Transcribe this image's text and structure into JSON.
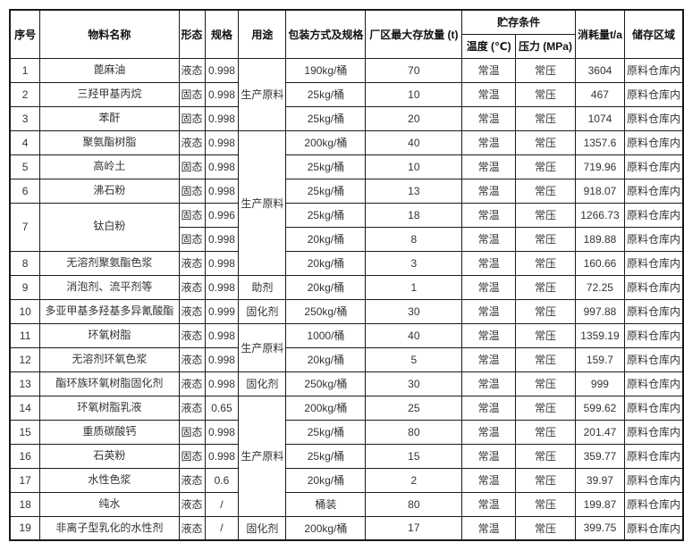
{
  "table": {
    "header": {
      "serial": "序号",
      "material_name": "物料名称",
      "form": "形态",
      "spec": "规格",
      "use": "用途",
      "packaging": "包装方式及规格",
      "max_storage": "厂区最大存放量 (t)",
      "storage_conditions": "贮存条件",
      "temperature": "温度 (℃)",
      "pressure": "压力 (MPa)",
      "consumption": "消耗量t/a",
      "storage_area": "储存区域"
    },
    "column_keys": [
      "serial",
      "material-name",
      "form",
      "spec",
      "use",
      "packaging",
      "max-storage",
      "temperature",
      "pressure",
      "consumption",
      "storage-area"
    ],
    "rows": [
      [
        {
          "t": "1"
        },
        {
          "t": "蓖麻油"
        },
        {
          "t": "液态"
        },
        {
          "t": "0.998"
        },
        {
          "t": "生产原料",
          "rs": 3
        },
        {
          "t": "190kg/桶"
        },
        {
          "t": "70"
        },
        {
          "t": "常温"
        },
        {
          "t": "常压"
        },
        {
          "t": "3604"
        },
        {
          "t": "原料仓库内"
        }
      ],
      [
        {
          "t": "2"
        },
        {
          "t": "三羟甲基丙烷"
        },
        {
          "t": "固态"
        },
        {
          "t": "0.998"
        },
        {
          "t": "25kg/桶"
        },
        {
          "t": "10"
        },
        {
          "t": "常温"
        },
        {
          "t": "常压"
        },
        {
          "t": "467"
        },
        {
          "t": "原料仓库内"
        }
      ],
      [
        {
          "t": "3"
        },
        {
          "t": "苯酐"
        },
        {
          "t": "固态"
        },
        {
          "t": "0.998"
        },
        {
          "t": "25kg/桶"
        },
        {
          "t": "20"
        },
        {
          "t": "常温"
        },
        {
          "t": "常压"
        },
        {
          "t": "1074"
        },
        {
          "t": "原料仓库内"
        }
      ],
      [
        {
          "t": "4"
        },
        {
          "t": "聚氨酯树脂"
        },
        {
          "t": "液态"
        },
        {
          "t": "0.998"
        },
        {
          "t": "生产原料",
          "rs": 6
        },
        {
          "t": "200kg/桶"
        },
        {
          "t": "40"
        },
        {
          "t": "常温"
        },
        {
          "t": "常压"
        },
        {
          "t": "1357.6"
        },
        {
          "t": "原料仓库内"
        }
      ],
      [
        {
          "t": "5"
        },
        {
          "t": "高岭土"
        },
        {
          "t": "固态"
        },
        {
          "t": "0.998"
        },
        {
          "t": "25kg/桶"
        },
        {
          "t": "10"
        },
        {
          "t": "常温"
        },
        {
          "t": "常压"
        },
        {
          "t": "719.96"
        },
        {
          "t": "原料仓库内"
        }
      ],
      [
        {
          "t": "6"
        },
        {
          "t": "沸石粉"
        },
        {
          "t": "固态"
        },
        {
          "t": "0.998"
        },
        {
          "t": "25kg/桶"
        },
        {
          "t": "13"
        },
        {
          "t": "常温"
        },
        {
          "t": "常压"
        },
        {
          "t": "918.07"
        },
        {
          "t": "原料仓库内"
        }
      ],
      [
        {
          "t": "7",
          "rs": 2
        },
        {
          "t": "钛白粉",
          "rs": 2
        },
        {
          "t": "固态"
        },
        {
          "t": "0.996"
        },
        {
          "t": "25kg/桶"
        },
        {
          "t": "18"
        },
        {
          "t": "常温"
        },
        {
          "t": "常压"
        },
        {
          "t": "1266.73"
        },
        {
          "t": "原料仓库内"
        }
      ],
      [
        {
          "t": "固态"
        },
        {
          "t": "0.998"
        },
        {
          "t": "20kg/桶"
        },
        {
          "t": "8"
        },
        {
          "t": "常温"
        },
        {
          "t": "常压"
        },
        {
          "t": "189.88"
        },
        {
          "t": "原料仓库内"
        }
      ],
      [
        {
          "t": "8"
        },
        {
          "t": "无溶剂聚氨酯色浆"
        },
        {
          "t": "液态"
        },
        {
          "t": "0.998"
        },
        {
          "t": "20kg/桶"
        },
        {
          "t": "3"
        },
        {
          "t": "常温"
        },
        {
          "t": "常压"
        },
        {
          "t": "160.66"
        },
        {
          "t": "原料仓库内"
        }
      ],
      [
        {
          "t": "9"
        },
        {
          "t": "消泡剂、流平剂等"
        },
        {
          "t": "液态"
        },
        {
          "t": "0.998"
        },
        {
          "t": "助剂"
        },
        {
          "t": "20kg/桶"
        },
        {
          "t": "1"
        },
        {
          "t": "常温"
        },
        {
          "t": "常压"
        },
        {
          "t": "72.25"
        },
        {
          "t": "原料仓库内"
        }
      ],
      [
        {
          "t": "10"
        },
        {
          "t": "多亚甲基多羟基多异氰酸酯"
        },
        {
          "t": "液态"
        },
        {
          "t": "0.999"
        },
        {
          "t": "固化剂"
        },
        {
          "t": "250kg/桶"
        },
        {
          "t": "30"
        },
        {
          "t": "常温"
        },
        {
          "t": "常压"
        },
        {
          "t": "997.88"
        },
        {
          "t": "原料仓库内"
        }
      ],
      [
        {
          "t": "11"
        },
        {
          "t": "环氧树脂"
        },
        {
          "t": "液态"
        },
        {
          "t": "0.998"
        },
        {
          "t": "生产原料",
          "rs": 2
        },
        {
          "t": "1000/桶"
        },
        {
          "t": "40"
        },
        {
          "t": "常温"
        },
        {
          "t": "常压"
        },
        {
          "t": "1359.19"
        },
        {
          "t": "原料仓库内"
        }
      ],
      [
        {
          "t": "12"
        },
        {
          "t": "无溶剂环氧色浆"
        },
        {
          "t": "液态"
        },
        {
          "t": "0.998"
        },
        {
          "t": "20kg/桶"
        },
        {
          "t": "5"
        },
        {
          "t": "常温"
        },
        {
          "t": "常压"
        },
        {
          "t": "159.7"
        },
        {
          "t": "原料仓库内"
        }
      ],
      [
        {
          "t": "13"
        },
        {
          "t": "酯环族环氧树脂固化剂"
        },
        {
          "t": "液态"
        },
        {
          "t": "0.998"
        },
        {
          "t": "固化剂"
        },
        {
          "t": "250kg/桶"
        },
        {
          "t": "30"
        },
        {
          "t": "常温"
        },
        {
          "t": "常压"
        },
        {
          "t": "999"
        },
        {
          "t": "原料仓库内"
        }
      ],
      [
        {
          "t": "14"
        },
        {
          "t": "环氧树脂乳液"
        },
        {
          "t": "液态"
        },
        {
          "t": "0.65"
        },
        {
          "t": "生产原料",
          "rs": 5
        },
        {
          "t": "200kg/桶"
        },
        {
          "t": "25"
        },
        {
          "t": "常温"
        },
        {
          "t": "常压"
        },
        {
          "t": "599.62"
        },
        {
          "t": "原料仓库内"
        }
      ],
      [
        {
          "t": "15"
        },
        {
          "t": "重质碳酸钙"
        },
        {
          "t": "固态"
        },
        {
          "t": "0.998"
        },
        {
          "t": "25kg/桶"
        },
        {
          "t": "80"
        },
        {
          "t": "常温"
        },
        {
          "t": "常压"
        },
        {
          "t": "201.47"
        },
        {
          "t": "原料仓库内"
        }
      ],
      [
        {
          "t": "16"
        },
        {
          "t": "石英粉"
        },
        {
          "t": "固态"
        },
        {
          "t": "0.998"
        },
        {
          "t": "25kg/桶"
        },
        {
          "t": "15"
        },
        {
          "t": "常温"
        },
        {
          "t": "常压"
        },
        {
          "t": "359.77"
        },
        {
          "t": "原料仓库内"
        }
      ],
      [
        {
          "t": "17"
        },
        {
          "t": "水性色浆"
        },
        {
          "t": "液态"
        },
        {
          "t": "0.6"
        },
        {
          "t": "20kg/桶"
        },
        {
          "t": "2"
        },
        {
          "t": "常温"
        },
        {
          "t": "常压"
        },
        {
          "t": "39.97"
        },
        {
          "t": "原料仓库内"
        }
      ],
      [
        {
          "t": "18"
        },
        {
          "t": "纯水"
        },
        {
          "t": "液态"
        },
        {
          "t": "/"
        },
        {
          "t": "桶装"
        },
        {
          "t": "80"
        },
        {
          "t": "常温"
        },
        {
          "t": "常压"
        },
        {
          "t": "199.87"
        },
        {
          "t": "原料仓库内"
        }
      ],
      [
        {
          "t": "19"
        },
        {
          "t": "非离子型乳化的水性剂"
        },
        {
          "t": "液态"
        },
        {
          "t": "/"
        },
        {
          "t": "固化剂"
        },
        {
          "t": "200kg/桶"
        },
        {
          "t": "17"
        },
        {
          "t": "常温"
        },
        {
          "t": "常压"
        },
        {
          "t": "399.75"
        },
        {
          "t": "原料仓库内"
        }
      ]
    ]
  }
}
